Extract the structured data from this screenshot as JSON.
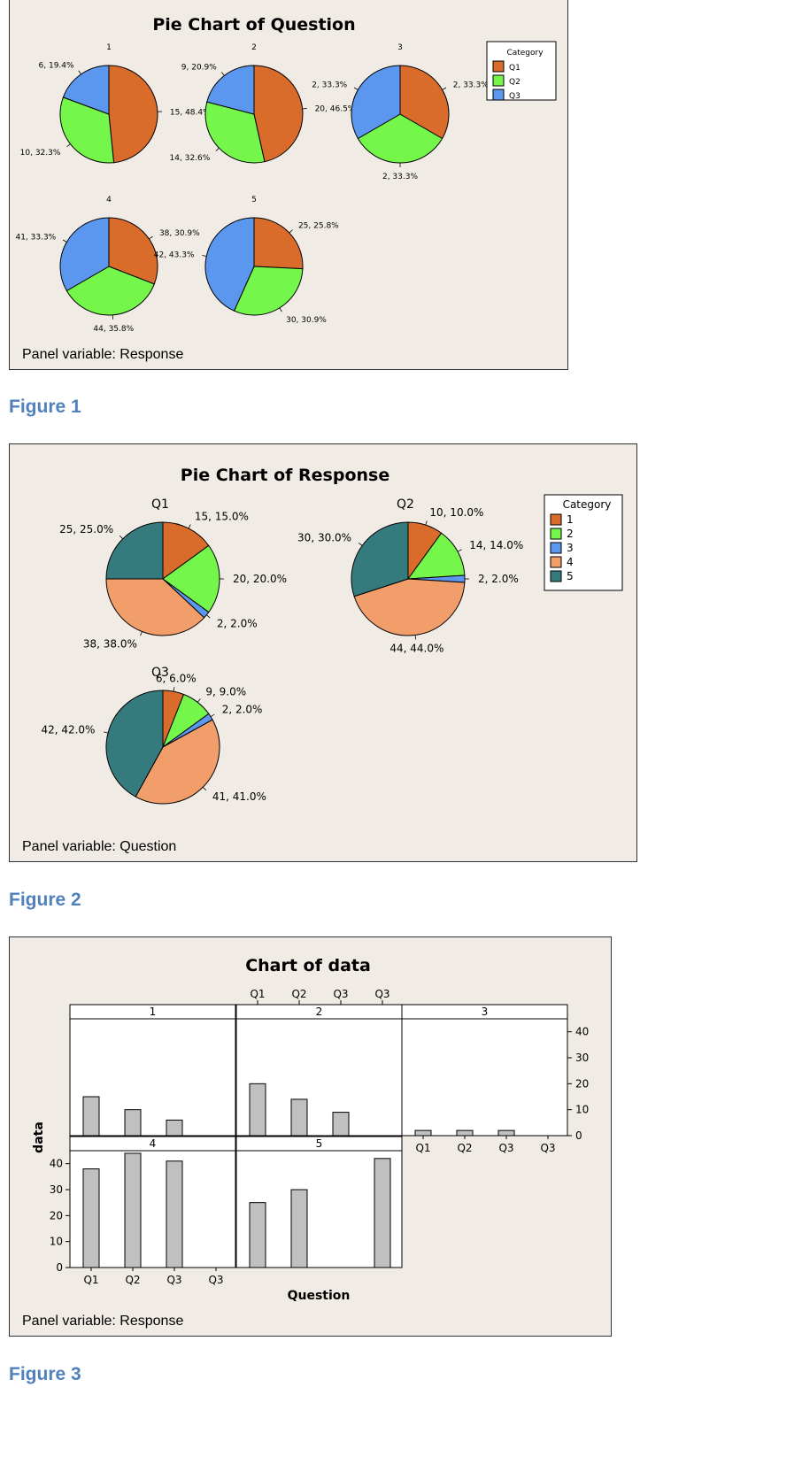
{
  "figures": [
    {
      "label": "Figure 1"
    },
    {
      "label": "Figure 2"
    },
    {
      "label": "Figure 3"
    }
  ],
  "colors": {
    "c1": "#d96b2b",
    "c2": "#74f74a",
    "c3": "#5b96ef",
    "c4": "#f19e6a",
    "c5": "#357b7e",
    "panel_bg": "#f0ebe4",
    "bar": "#c0c0c0",
    "figure_label": "#4f81bd"
  },
  "chart_data": [
    {
      "type": "pie",
      "title": "Pie Chart of Question",
      "panel_variable": "Panel variable: Response",
      "legend_title": "Category",
      "legend_position": "top-right",
      "categories": [
        "Q1",
        "Q2",
        "Q3"
      ],
      "panels": [
        {
          "name": "1",
          "values": [
            15,
            10,
            6
          ],
          "labels": [
            "15, 48.4%",
            "10, 32.3%",
            "6, 19.4%"
          ]
        },
        {
          "name": "2",
          "values": [
            20,
            14,
            9
          ],
          "labels": [
            "20, 46.5%",
            "14, 32.6%",
            "9, 20.9%"
          ]
        },
        {
          "name": "3",
          "values": [
            2,
            2,
            2
          ],
          "labels": [
            "2, 33.3%",
            "2, 33.3%",
            "2, 33.3%"
          ]
        },
        {
          "name": "4",
          "values": [
            38,
            44,
            41
          ],
          "labels": [
            "38, 30.9%",
            "44, 35.8%",
            "41, 33.3%"
          ]
        },
        {
          "name": "5",
          "values": [
            25,
            30,
            42
          ],
          "labels": [
            "25, 25.8%",
            "30, 30.9%",
            "42, 43.3%"
          ]
        }
      ]
    },
    {
      "type": "pie",
      "title": "Pie Chart of Response",
      "panel_variable": "Panel variable: Question",
      "legend_title": "Category",
      "legend_position": "top-right",
      "categories": [
        "1",
        "2",
        "3",
        "4",
        "5"
      ],
      "panels": [
        {
          "name": "Q1",
          "values": [
            15,
            20,
            2,
            38,
            25
          ],
          "labels": [
            "15, 15.0%",
            "20, 20.0%",
            "2, 2.0%",
            "38, 38.0%",
            "25, 25.0%"
          ]
        },
        {
          "name": "Q2",
          "values": [
            10,
            14,
            2,
            44,
            30
          ],
          "labels": [
            "10, 10.0%",
            "14, 14.0%",
            "2, 2.0%",
            "44, 44.0%",
            "30, 30.0%"
          ]
        },
        {
          "name": "Q3",
          "values": [
            6,
            9,
            2,
            41,
            42
          ],
          "labels": [
            "6, 6.0%",
            "9, 9.0%",
            "2, 2.0%",
            "41, 41.0%",
            "42, 42.0%"
          ]
        }
      ]
    },
    {
      "type": "bar",
      "title": "Chart of data",
      "panel_variable": "Panel variable: Response",
      "xlabel": "Question",
      "ylabel": "data",
      "categories": [
        "Q1",
        "Q2",
        "Q3",
        "Q3"
      ],
      "ylim": [
        0,
        45
      ],
      "yticks": [
        0,
        10,
        20,
        30,
        40
      ],
      "panels": [
        {
          "name": "1",
          "values": [
            15,
            10,
            6,
            null
          ]
        },
        {
          "name": "2",
          "values": [
            20,
            14,
            9,
            null
          ]
        },
        {
          "name": "3",
          "values": [
            2,
            2,
            2,
            null
          ]
        },
        {
          "name": "4",
          "values": [
            38,
            44,
            41,
            null
          ]
        },
        {
          "name": "5",
          "values": [
            25,
            30,
            null,
            42
          ]
        }
      ]
    }
  ]
}
